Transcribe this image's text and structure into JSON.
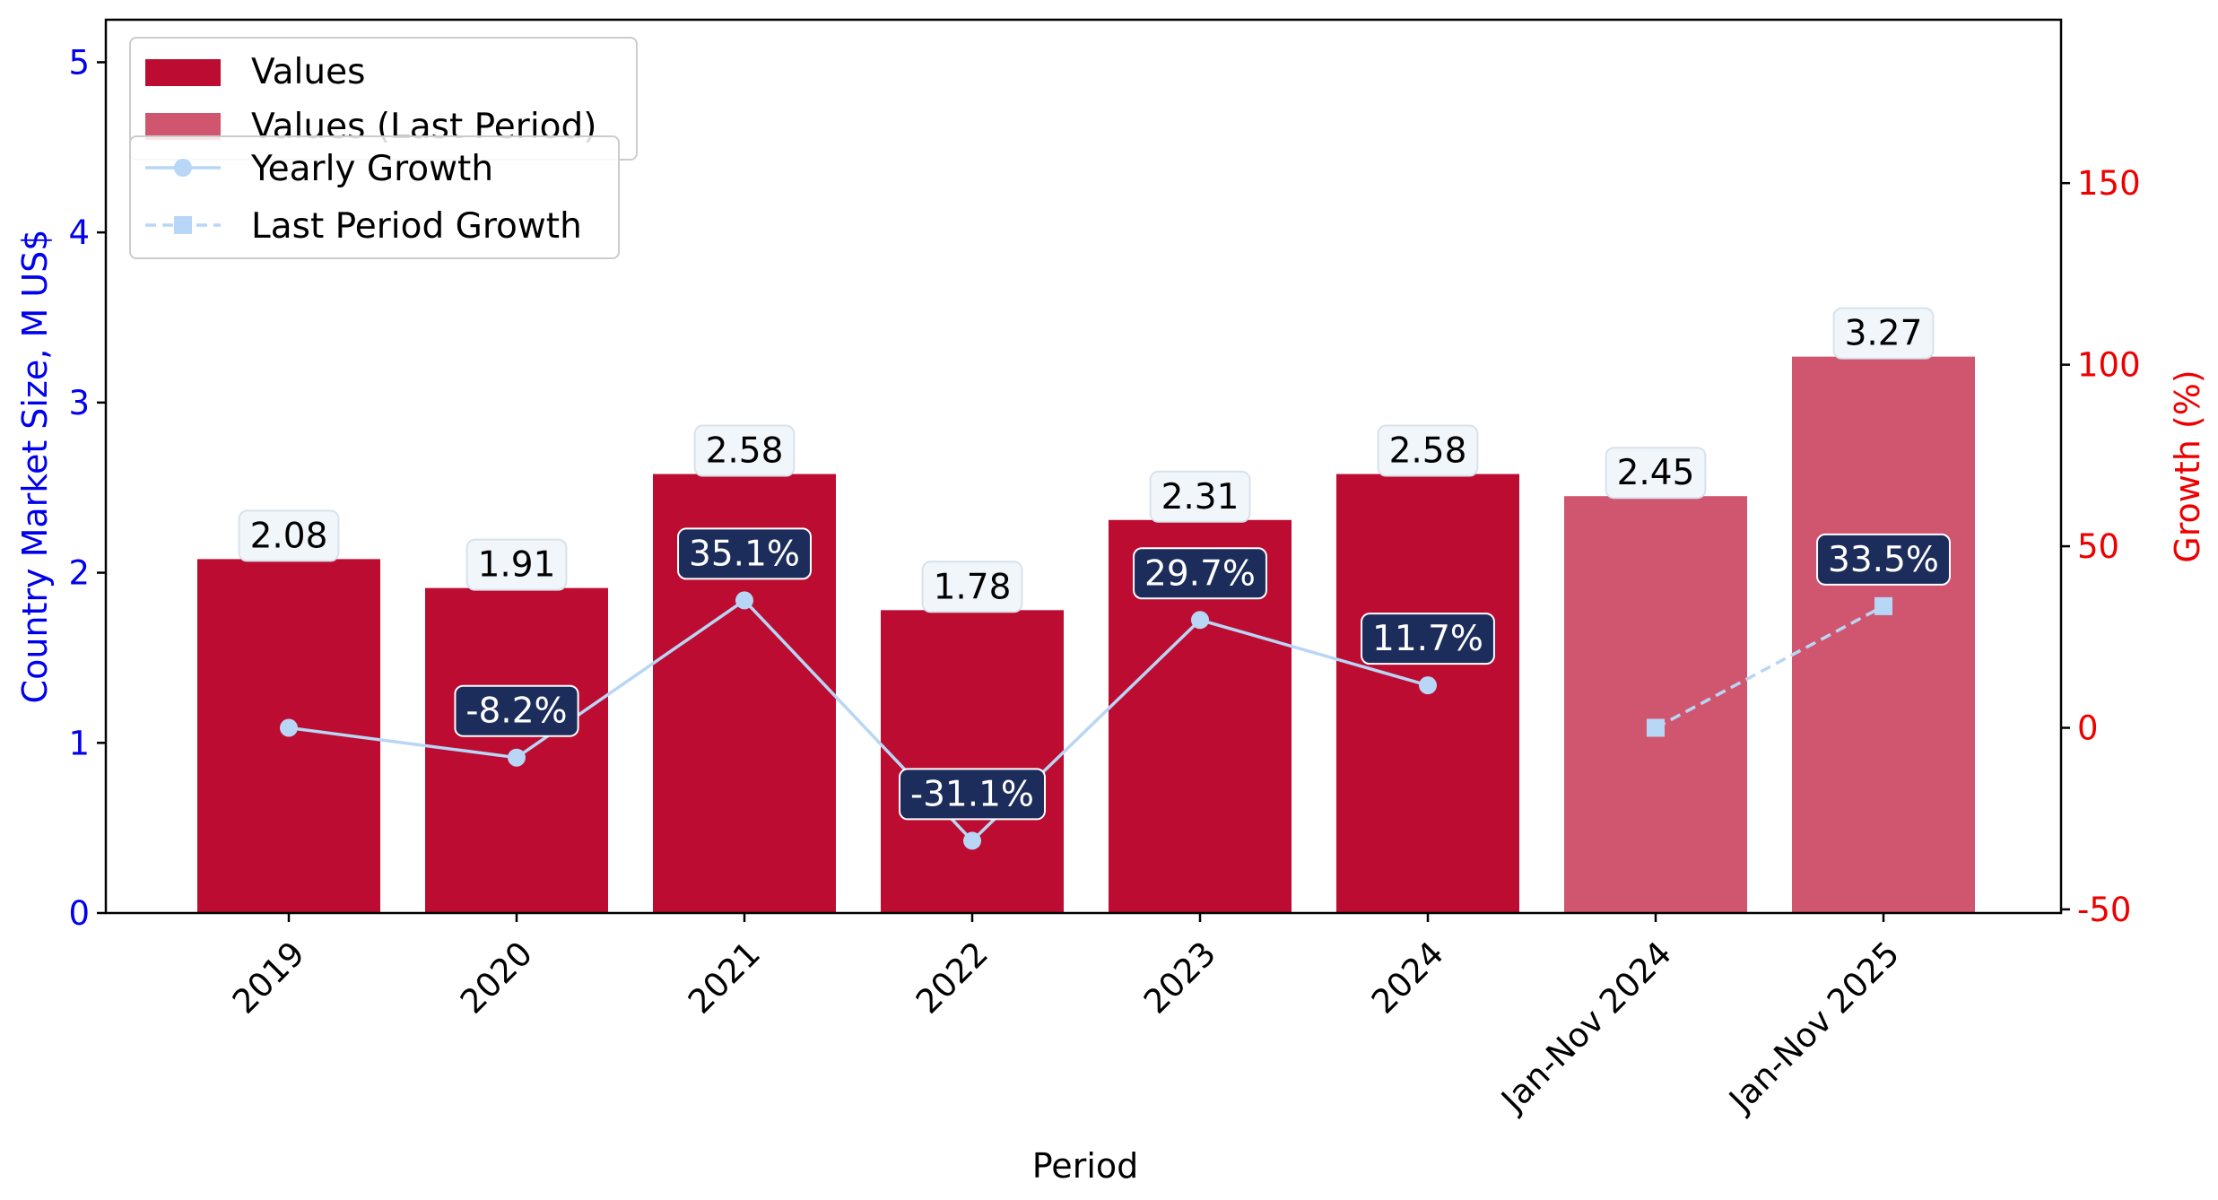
{
  "chart_data": {
    "type": "bar",
    "categories": [
      "2019",
      "2020",
      "2021",
      "2022",
      "2023",
      "2024",
      "Jan-Nov 2024",
      "Jan-Nov 2025"
    ],
    "series": [
      {
        "name": "Values",
        "kind": "bar",
        "axis": "left",
        "color": "#bc0c31",
        "values": [
          2.08,
          1.91,
          2.58,
          1.78,
          2.31,
          2.58,
          null,
          null
        ],
        "labels": [
          "2.08",
          "1.91",
          "2.58",
          "1.78",
          "2.31",
          "2.58",
          "",
          ""
        ]
      },
      {
        "name": "Values (Last Period)",
        "kind": "bar",
        "axis": "left",
        "color": "#d0566f",
        "values": [
          null,
          null,
          null,
          null,
          null,
          null,
          2.45,
          3.27
        ],
        "labels": [
          "",
          "",
          "",
          "",
          "",
          "",
          "2.45",
          "3.27"
        ]
      },
      {
        "name": "Yearly Growth",
        "kind": "line",
        "axis": "right",
        "color": "#b8d6f5",
        "marker": "circle",
        "linestyle": "solid",
        "values": [
          0,
          -8.2,
          35.1,
          -31.1,
          29.7,
          11.7,
          null,
          null
        ],
        "labels": [
          "",
          "-8.2%",
          "35.1%",
          "-31.1%",
          "29.7%",
          "11.7%",
          "",
          ""
        ]
      },
      {
        "name": "Last Period Growth",
        "kind": "line",
        "axis": "right",
        "color": "#b8d6f5",
        "marker": "square",
        "linestyle": "dashed",
        "values": [
          null,
          null,
          null,
          null,
          null,
          null,
          0,
          33.5
        ],
        "labels": [
          "",
          "",
          "",
          "",
          "",
          "",
          "",
          "33.5%"
        ]
      }
    ],
    "xlabel": "Period",
    "ylabel": "Country Market Size, M US$",
    "ylabel_right": "Growth (%)",
    "ylim": [
      0,
      5.25
    ],
    "ylim_right": [
      -51,
      195
    ],
    "yticks": [
      0,
      1,
      2,
      3,
      4,
      5
    ],
    "yticks_right": [
      -50,
      0,
      50,
      100,
      150
    ],
    "grid": false,
    "legend_placement": "top-left",
    "colors": {
      "left_axis": "#0000ee",
      "right_axis": "#ee0000",
      "growth_label_bg": "#1c2d5c",
      "value_label_bg": "#f1f6fb"
    }
  }
}
